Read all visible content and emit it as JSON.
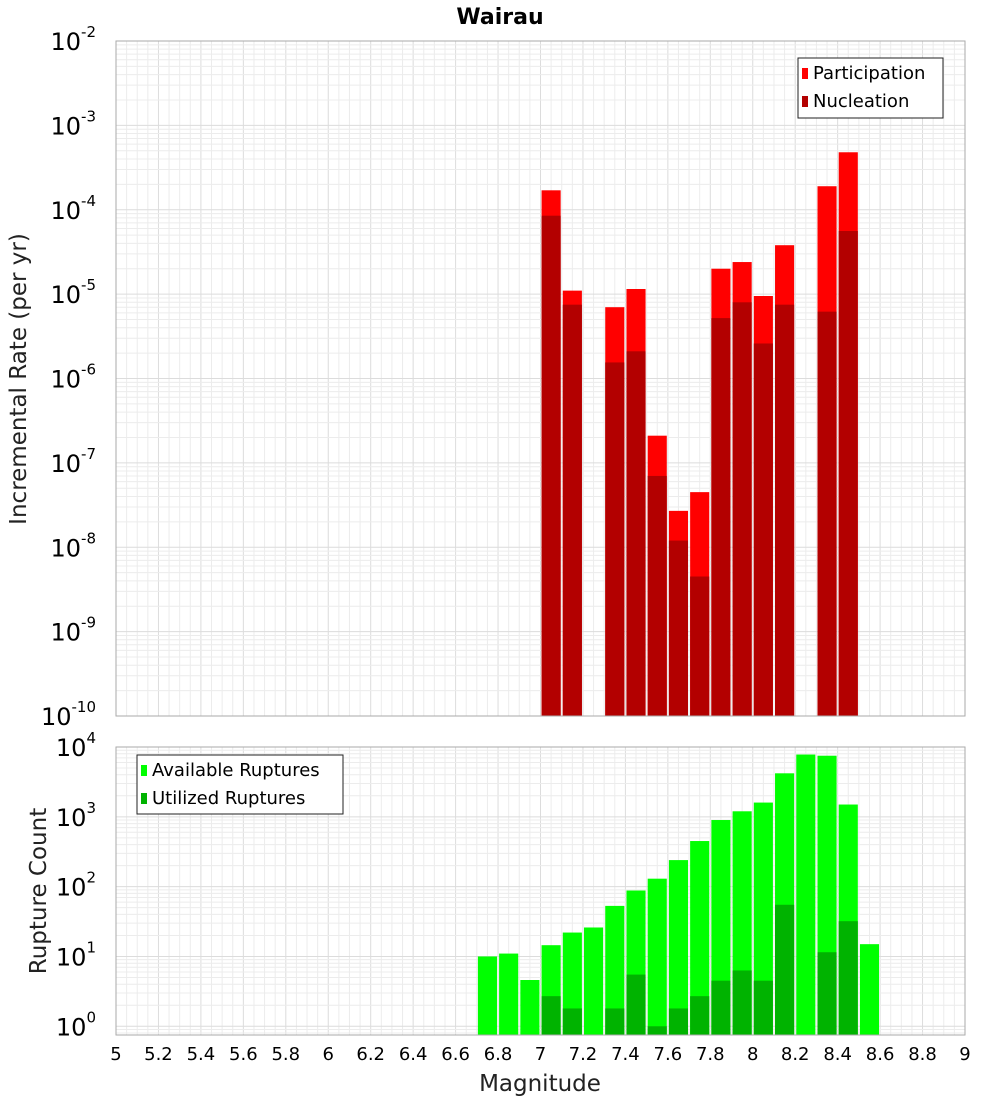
{
  "chart_data": [
    {
      "type": "bar",
      "title": "Wairau",
      "ylabel": "Incremental Rate (per yr)",
      "xlabel": "",
      "xlim": [
        5,
        9
      ],
      "ylim": [
        1e-10,
        0.01
      ],
      "yscale": "log",
      "bar_width": 0.09,
      "grid": true,
      "legend_position": "top-right",
      "series": [
        {
          "name": "Participation",
          "color": "#ff0000",
          "points": [
            [
              7.05,
              0.00017
            ],
            [
              7.15,
              1.1e-05
            ],
            [
              7.35,
              7e-06
            ],
            [
              7.45,
              1.15e-05
            ],
            [
              7.55,
              2.1e-07
            ],
            [
              7.65,
              2.7e-08
            ],
            [
              7.75,
              4.5e-08
            ],
            [
              7.85,
              2e-05
            ],
            [
              7.95,
              2.4e-05
            ],
            [
              8.05,
              9.5e-06
            ],
            [
              8.15,
              3.8e-05
            ],
            [
              8.35,
              0.00019
            ],
            [
              8.45,
              0.00048
            ]
          ]
        },
        {
          "name": "Nucleation",
          "color": "#b30000",
          "points": [
            [
              7.05,
              8.5e-05
            ],
            [
              7.15,
              7.5e-06
            ],
            [
              7.35,
              1.55e-06
            ],
            [
              7.45,
              2.1e-06
            ],
            [
              7.55,
              7e-08
            ],
            [
              7.65,
              1.2e-08
            ],
            [
              7.75,
              4.5e-09
            ],
            [
              7.85,
              5.2e-06
            ],
            [
              7.95,
              8e-06
            ],
            [
              8.05,
              2.6e-06
            ],
            [
              8.15,
              7.5e-06
            ],
            [
              8.35,
              6.2e-06
            ],
            [
              8.45,
              5.6e-05
            ]
          ]
        }
      ]
    },
    {
      "type": "bar",
      "title": "",
      "ylabel": "Rupture Count",
      "xlabel": "Magnitude",
      "xlim": [
        5,
        9
      ],
      "ylim": [
        0.75,
        10000.0
      ],
      "yscale": "log",
      "bar_width": 0.09,
      "grid": true,
      "legend_position": "top-left",
      "x_ticks": [
        "5",
        "5.2",
        "5.4",
        "5.6",
        "5.8",
        "6",
        "6.2",
        "6.4",
        "6.6",
        "6.8",
        "7",
        "7.2",
        "7.4",
        "7.6",
        "7.8",
        "8",
        "8.2",
        "8.4",
        "8.6",
        "8.8",
        "9"
      ],
      "series": [
        {
          "name": "Available Ruptures",
          "color": "#00ff00",
          "points": [
            [
              6.75,
              10
            ],
            [
              6.85,
              11
            ],
            [
              6.95,
              4.6
            ],
            [
              7.05,
              14.5
            ],
            [
              7.15,
              22
            ],
            [
              7.25,
              26
            ],
            [
              7.35,
              53
            ],
            [
              7.45,
              88
            ],
            [
              7.55,
              130
            ],
            [
              7.65,
              240
            ],
            [
              7.75,
              450
            ],
            [
              7.85,
              900
            ],
            [
              7.95,
              1200
            ],
            [
              8.05,
              1600
            ],
            [
              8.15,
              4200
            ],
            [
              8.25,
              7800
            ],
            [
              8.35,
              7500
            ],
            [
              8.45,
              1500
            ],
            [
              8.55,
              15
            ]
          ]
        },
        {
          "name": "Utilized Ruptures",
          "color": "#00b300",
          "points": [
            [
              7.05,
              2.7
            ],
            [
              7.15,
              1.8
            ],
            [
              7.35,
              1.8
            ],
            [
              7.45,
              5.5
            ],
            [
              7.55,
              1
            ],
            [
              7.65,
              1.8
            ],
            [
              7.75,
              2.7
            ],
            [
              7.85,
              4.5
            ],
            [
              7.95,
              6.3
            ],
            [
              8.05,
              4.5
            ],
            [
              8.15,
              55
            ],
            [
              8.35,
              11.5
            ],
            [
              8.45,
              32
            ]
          ]
        }
      ]
    }
  ]
}
